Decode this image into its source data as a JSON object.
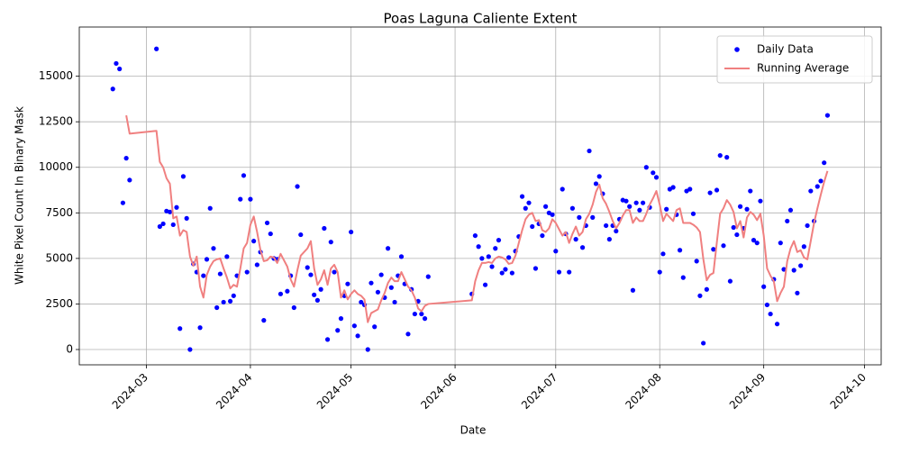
{
  "chart_data": {
    "type": "scatter",
    "title": "Poas Laguna Caliente Extent",
    "x_label": "Date",
    "y_label": "White Pixel Count In Binary Mask",
    "xlim": [
      "2024-02-10",
      "2024-10-06"
    ],
    "xticks": [
      {
        "value": "2024-03-01",
        "label": "2024-03"
      },
      {
        "value": "2024-04-01",
        "label": "2024-04"
      },
      {
        "value": "2024-05-01",
        "label": "2024-05"
      },
      {
        "value": "2024-06-01",
        "label": "2024-06"
      },
      {
        "value": "2024-07-01",
        "label": "2024-07"
      },
      {
        "value": "2024-08-01",
        "label": "2024-08"
      },
      {
        "value": "2024-09-01",
        "label": "2024-09"
      },
      {
        "value": "2024-10-01",
        "label": "2024-10"
      }
    ],
    "ylim": [
      -840,
      17700
    ],
    "yticks": [
      0,
      2500,
      5000,
      7500,
      10000,
      12500,
      15000
    ],
    "grid": true,
    "legend": "upper right",
    "x": [
      "2024-02-20",
      "2024-02-21",
      "2024-02-22",
      "2024-02-23",
      "2024-02-24",
      "2024-02-25",
      "2024-03-04",
      "2024-03-05",
      "2024-03-06",
      "2024-03-07",
      "2024-03-08",
      "2024-03-09",
      "2024-03-10",
      "2024-03-11",
      "2024-03-12",
      "2024-03-13",
      "2024-03-14",
      "2024-03-15",
      "2024-03-16",
      "2024-03-17",
      "2024-03-18",
      "2024-03-19",
      "2024-03-20",
      "2024-03-21",
      "2024-03-22",
      "2024-03-23",
      "2024-03-24",
      "2024-03-25",
      "2024-03-26",
      "2024-03-27",
      "2024-03-28",
      "2024-03-29",
      "2024-03-30",
      "2024-03-31",
      "2024-04-01",
      "2024-04-02",
      "2024-04-03",
      "2024-04-04",
      "2024-04-05",
      "2024-04-06",
      "2024-04-07",
      "2024-04-08",
      "2024-04-09",
      "2024-04-10",
      "2024-04-12",
      "2024-04-13",
      "2024-04-14",
      "2024-04-15",
      "2024-04-16",
      "2024-04-18",
      "2024-04-19",
      "2024-04-20",
      "2024-04-21",
      "2024-04-22",
      "2024-04-23",
      "2024-04-24",
      "2024-04-25",
      "2024-04-26",
      "2024-04-27",
      "2024-04-28",
      "2024-04-29",
      "2024-04-30",
      "2024-05-01",
      "2024-05-02",
      "2024-05-03",
      "2024-05-04",
      "2024-05-05",
      "2024-05-06",
      "2024-05-07",
      "2024-05-08",
      "2024-05-09",
      "2024-05-10",
      "2024-05-11",
      "2024-05-12",
      "2024-05-13",
      "2024-05-14",
      "2024-05-15",
      "2024-05-16",
      "2024-05-17",
      "2024-05-18",
      "2024-05-19",
      "2024-05-20",
      "2024-05-21",
      "2024-05-22",
      "2024-05-23",
      "2024-05-24",
      "2024-06-06",
      "2024-06-07",
      "2024-06-08",
      "2024-06-09",
      "2024-06-10",
      "2024-06-11",
      "2024-06-12",
      "2024-06-13",
      "2024-06-14",
      "2024-06-15",
      "2024-06-16",
      "2024-06-17",
      "2024-06-18",
      "2024-06-19",
      "2024-06-20",
      "2024-06-21",
      "2024-06-22",
      "2024-06-23",
      "2024-06-24",
      "2024-06-25",
      "2024-06-26",
      "2024-06-27",
      "2024-06-28",
      "2024-06-29",
      "2024-06-30",
      "2024-07-01",
      "2024-07-02",
      "2024-07-03",
      "2024-07-04",
      "2024-07-05",
      "2024-07-06",
      "2024-07-07",
      "2024-07-08",
      "2024-07-09",
      "2024-07-10",
      "2024-07-11",
      "2024-07-12",
      "2024-07-13",
      "2024-07-14",
      "2024-07-15",
      "2024-07-16",
      "2024-07-17",
      "2024-07-18",
      "2024-07-19",
      "2024-07-20",
      "2024-07-21",
      "2024-07-22",
      "2024-07-23",
      "2024-07-24",
      "2024-07-25",
      "2024-07-26",
      "2024-07-27",
      "2024-07-28",
      "2024-07-29",
      "2024-07-30",
      "2024-07-31",
      "2024-08-01",
      "2024-08-02",
      "2024-08-03",
      "2024-08-04",
      "2024-08-05",
      "2024-08-06",
      "2024-08-07",
      "2024-08-08",
      "2024-08-09",
      "2024-08-10",
      "2024-08-11",
      "2024-08-12",
      "2024-08-13",
      "2024-08-14",
      "2024-08-15",
      "2024-08-16",
      "2024-08-17",
      "2024-08-18",
      "2024-08-19",
      "2024-08-20",
      "2024-08-21",
      "2024-08-22",
      "2024-08-23",
      "2024-08-24",
      "2024-08-25",
      "2024-08-26",
      "2024-08-27",
      "2024-08-28",
      "2024-08-29",
      "2024-08-30",
      "2024-08-31",
      "2024-09-01",
      "2024-09-02",
      "2024-09-03",
      "2024-09-04",
      "2024-09-05",
      "2024-09-06",
      "2024-09-07",
      "2024-09-08",
      "2024-09-09",
      "2024-09-10",
      "2024-09-11",
      "2024-09-12",
      "2024-09-13",
      "2024-09-14",
      "2024-09-15",
      "2024-09-16",
      "2024-09-17",
      "2024-09-18",
      "2024-09-19",
      "2024-09-20"
    ],
    "series": [
      {
        "name": "Daily Data",
        "type": "scatter",
        "color": "#0000ff",
        "values": [
          14300,
          15700,
          15400,
          8050,
          10500,
          9300,
          16500,
          6750,
          6900,
          7600,
          7550,
          6850,
          7800,
          1150,
          9500,
          7200,
          0,
          4700,
          4250,
          1200,
          4050,
          4950,
          7750,
          5550,
          2300,
          4150,
          2600,
          5100,
          2650,
          2950,
          4050,
          8250,
          9550,
          4250,
          8250,
          5950,
          4650,
          5350,
          1600,
          6950,
          6350,
          5000,
          4950,
          3050,
          3200,
          4050,
          2300,
          8950,
          6300,
          4500,
          4100,
          3000,
          2700,
          3300,
          6650,
          550,
          5900,
          4250,
          1050,
          1700,
          2950,
          3600,
          6450,
          1300,
          750,
          2600,
          2450,
          0,
          3650,
          1250,
          3150,
          4100,
          2850,
          5550,
          3400,
          2600,
          4050,
          5100,
          3600,
          850,
          3300,
          1950,
          2650,
          1950,
          1700,
          4000,
          3050,
          6250,
          5650,
          5000,
          3550,
          5100,
          4550,
          5550,
          6000,
          4200,
          4400,
          5050,
          4200,
          5400,
          6200,
          8400,
          7750,
          8050,
          6750,
          4450,
          6900,
          6250,
          7850,
          7500,
          7400,
          5400,
          4250,
          8800,
          6350,
          4250,
          7750,
          6050,
          7250,
          5600,
          6800,
          10900,
          7250,
          9100,
          9500,
          8550,
          6800,
          6050,
          6800,
          6500,
          7150,
          8200,
          8150,
          7850,
          3250,
          8050,
          7650,
          8050,
          10000,
          7800,
          9700,
          9450,
          4250,
          5250,
          7700,
          8800,
          8900,
          7400,
          5450,
          3950,
          8700,
          8800,
          7450,
          4850,
          2950,
          350,
          3300,
          8600,
          5500,
          8750,
          10650,
          5700,
          10550,
          3750,
          6700,
          6300,
          7850,
          6650,
          7700,
          8700,
          6000,
          5850,
          8150,
          3450,
          2450,
          1950,
          3850,
          1400,
          5850,
          4400,
          7050,
          7650,
          4350,
          3100,
          4600,
          5650,
          6800,
          8700,
          7050,
          8950,
          9250,
          10250,
          12850
        ]
      },
      {
        "name": "Running Average",
        "type": "line",
        "color": "#f08080",
        "values": [
          null,
          null,
          null,
          null,
          12850,
          11850,
          12000,
          10300,
          10000,
          9400,
          9100,
          7200,
          7300,
          6250,
          6550,
          6450,
          5100,
          4600,
          5100,
          3450,
          2850,
          4100,
          4550,
          4850,
          4950,
          5000,
          4450,
          3950,
          3350,
          3550,
          3450,
          4450,
          5550,
          5850,
          6850,
          7300,
          6450,
          5450,
          4850,
          4900,
          5100,
          5050,
          4750,
          5250,
          4550,
          3850,
          3450,
          4350,
          5150,
          5550,
          5950,
          4450,
          3550,
          3850,
          4350,
          3550,
          4450,
          4650,
          4250,
          2850,
          3250,
          2750,
          3050,
          3250,
          3050,
          2950,
          2750,
          1500,
          2000,
          2100,
          2200,
          2700,
          3100,
          3650,
          3950,
          3750,
          3750,
          4250,
          3850,
          3450,
          3250,
          2850,
          2250,
          2100,
          2400,
          2500,
          2700,
          3750,
          4350,
          4750,
          4750,
          4800,
          4750,
          5000,
          5100,
          5050,
          4950,
          4700,
          4750,
          5150,
          5850,
          6550,
          7150,
          7400,
          7500,
          7050,
          7100,
          6550,
          6450,
          6650,
          7150,
          6950,
          6600,
          6250,
          6450,
          5850,
          6350,
          6750,
          6250,
          6450,
          7150,
          7450,
          7950,
          8650,
          9050,
          8300,
          8000,
          7550,
          7050,
          6650,
          6950,
          7350,
          7650,
          7650,
          6950,
          7250,
          7050,
          7050,
          7450,
          7950,
          8300,
          8700,
          7950,
          7050,
          7450,
          7250,
          7050,
          7650,
          7750,
          6950,
          6950,
          6950,
          6850,
          6700,
          6450,
          4950,
          3800,
          4100,
          4200,
          5850,
          7450,
          7750,
          8200,
          7950,
          7550,
          6650,
          7050,
          6150,
          7250,
          7550,
          7400,
          7100,
          7450,
          6250,
          4450,
          4050,
          3750,
          2650,
          3100,
          3450,
          4850,
          5550,
          5950,
          5350,
          5450,
          5050,
          4950,
          5950,
          6950,
          7750,
          8500,
          9200,
          9800
        ]
      }
    ]
  }
}
